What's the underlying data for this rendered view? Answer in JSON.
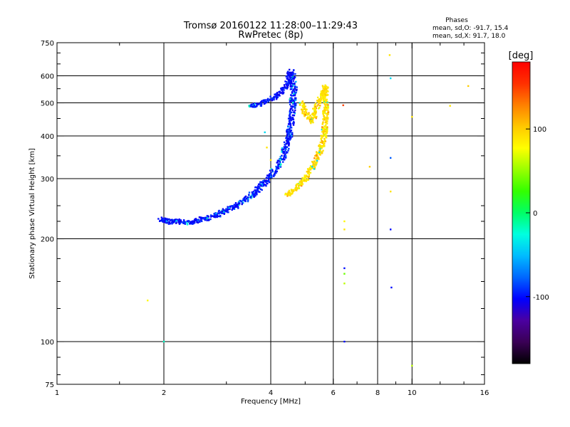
{
  "chart_data": {
    "type": "scatter",
    "title": "Tromsø 20160122 11:28:00–11:29:43",
    "subtitle": "RwPretec (8p)",
    "xlabel": "Frequency [MHz]",
    "ylabel": "Stationary phase Virtual Height [km]",
    "x_scale": "log",
    "y_scale": "log",
    "xlim": [
      1,
      16
    ],
    "ylim": [
      75,
      750
    ],
    "x_ticks": [
      1,
      2,
      4,
      6,
      8,
      10,
      16
    ],
    "x_tick_labels": [
      "1",
      "2",
      "4",
      "6",
      "8",
      "10",
      "16"
    ],
    "x_minor_ticks": [
      1.5,
      3,
      5,
      7,
      9,
      12,
      14
    ],
    "x_grid": [
      2,
      4,
      6,
      8,
      10
    ],
    "y_ticks": [
      75,
      100,
      200,
      300,
      400,
      500,
      600,
      750
    ],
    "y_tick_labels": [
      "75",
      "100",
      "200",
      "300",
      "400",
      "500",
      "600",
      "750"
    ],
    "y_minor_ticks": [
      80,
      90,
      125,
      150,
      175,
      225,
      250,
      350,
      450,
      550,
      650,
      700
    ],
    "y_grid": [
      100,
      200,
      300,
      400,
      500,
      600
    ],
    "grid": true,
    "phases_header": "Phases",
    "phases_o": "mean, sd,O: -91.7, 15.4",
    "phases_x": "mean, sd,X:  91.7, 18.0",
    "colorbar": {
      "label": "[deg]",
      "range": [
        -180,
        180
      ],
      "ticks": [
        100,
        0,
        -100
      ],
      "tick_labels": [
        "100",
        "0",
        "-100"
      ],
      "colors": [
        "#000000",
        "#3a0055",
        "#4b00a0",
        "#0000ff",
        "#0066ff",
        "#00bbff",
        "#00ffe0",
        "#00ff66",
        "#33ff00",
        "#99ff00",
        "#ffff00",
        "#ffc800",
        "#ff8000",
        "#ff3000",
        "#ff0000"
      ]
    },
    "series": [
      {
        "values": [
          [
            1.95,
            228
          ],
          [
            2.0,
            226
          ],
          [
            2.05,
            227
          ],
          [
            2.1,
            224
          ],
          [
            2.2,
            225
          ],
          [
            2.3,
            223
          ],
          [
            2.4,
            224
          ],
          [
            2.5,
            226
          ],
          [
            2.6,
            229
          ],
          [
            2.7,
            231
          ],
          [
            2.8,
            234
          ],
          [
            2.9,
            238
          ],
          [
            3.0,
            242
          ],
          [
            3.1,
            246
          ],
          [
            3.2,
            250
          ],
          [
            3.3,
            255
          ],
          [
            3.4,
            260
          ],
          [
            3.5,
            266
          ],
          [
            3.6,
            273
          ],
          [
            3.7,
            280
          ],
          [
            3.8,
            288
          ],
          [
            3.9,
            297
          ],
          [
            4.0,
            307
          ],
          [
            4.1,
            318
          ],
          [
            4.2,
            330
          ],
          [
            4.3,
            345
          ],
          [
            4.4,
            365
          ],
          [
            4.5,
            395
          ],
          [
            4.55,
            430
          ],
          [
            4.6,
            470
          ],
          [
            4.62,
            520
          ],
          [
            4.65,
            560
          ],
          [
            4.6,
            600
          ],
          [
            4.55,
            620
          ],
          [
            4.45,
            560
          ],
          [
            4.3,
            540
          ],
          [
            4.1,
            520
          ],
          [
            3.9,
            505
          ],
          [
            3.7,
            495
          ],
          [
            3.5,
            490
          ]
        ],
        "spread": 0.07,
        "dominant_phase": -100,
        "mixed_phases": [
          -95,
          -80,
          -60,
          -40,
          -20
        ]
      },
      {
        "values": [
          [
            4.45,
            270
          ],
          [
            4.6,
            275
          ],
          [
            4.8,
            285
          ],
          [
            5.0,
            300
          ],
          [
            5.2,
            320
          ],
          [
            5.4,
            345
          ],
          [
            5.55,
            370
          ],
          [
            5.65,
            400
          ],
          [
            5.7,
            440
          ],
          [
            5.72,
            480
          ],
          [
            5.72,
            520
          ],
          [
            5.7,
            560
          ],
          [
            5.2,
            440
          ],
          [
            5.0,
            470
          ],
          [
            4.9,
            500
          ]
        ],
        "spread": 0.06,
        "dominant_phase": 92,
        "mixed_phases": [
          80,
          70,
          120,
          130,
          -40
        ]
      },
      {
        "values": [
          [
            1.8,
            132,
            80
          ],
          [
            2.0,
            100,
            -20
          ],
          [
            3.9,
            290,
            -100
          ],
          [
            3.9,
            370,
            90
          ],
          [
            3.85,
            410,
            -40
          ],
          [
            4.0,
            340,
            90
          ],
          [
            6.45,
            164,
            -100
          ],
          [
            6.45,
            158,
            40
          ],
          [
            6.45,
            148,
            60
          ],
          [
            6.45,
            100,
            -100
          ],
          [
            6.45,
            225,
            80
          ],
          [
            6.45,
            213,
            90
          ],
          [
            6.4,
            492,
            150
          ],
          [
            7.6,
            325,
            100
          ],
          [
            8.65,
            690,
            90
          ],
          [
            8.7,
            590,
            -40
          ],
          [
            8.7,
            345,
            -80
          ],
          [
            8.7,
            275,
            90
          ],
          [
            8.7,
            213,
            -100
          ],
          [
            8.75,
            144,
            -100
          ],
          [
            10.0,
            455,
            90
          ],
          [
            10.0,
            85,
            60
          ],
          [
            12.8,
            490,
            90
          ],
          [
            14.4,
            560,
            100
          ]
        ],
        "note_isolated": true
      }
    ]
  }
}
